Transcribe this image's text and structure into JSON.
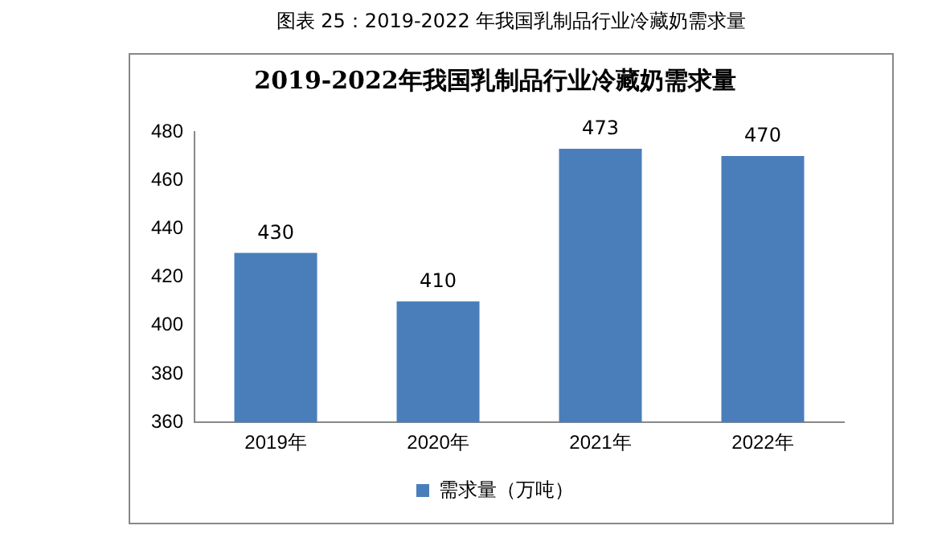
{
  "chart_data": {
    "type": "bar",
    "title": "2019-2022年我国乳制品行业冷藏奶需求量",
    "annotations": [
      "图表 25：2019-2022 年我国乳制品行业冷藏奶需求量"
    ],
    "categories": [
      "2019年",
      "2020年",
      "2021年",
      "2022年"
    ],
    "series": [
      {
        "name": "需求量（万吨）",
        "color": "#4a7ebb",
        "values": [
          430,
          410,
          473,
          470
        ]
      }
    ],
    "ylim": [
      360,
      480
    ],
    "yticks": [
      360,
      380,
      400,
      420,
      440,
      460,
      480
    ],
    "grid": false,
    "legend": "bottom",
    "data_labels": true
  }
}
